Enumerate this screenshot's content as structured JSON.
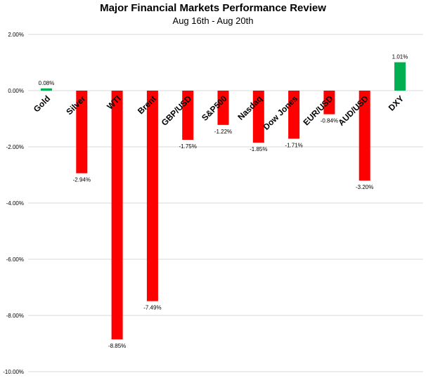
{
  "chart_data": {
    "type": "bar",
    "title": "Major Financial Markets Performance Review",
    "subtitle": "Aug 16th - Aug 20th",
    "xlabel": "",
    "ylabel": "",
    "ylim": [
      -10,
      2
    ],
    "yticks": [
      2,
      0,
      -2,
      -4,
      -6,
      -8,
      -10
    ],
    "ytick_labels": [
      "2.00%",
      "0.00%",
      "-2.00%",
      "-4.00%",
      "-6.00%",
      "-8.00%",
      "-10.00%"
    ],
    "grid": true,
    "categories": [
      "Gold",
      "Silver",
      "WTI",
      "Brent",
      "GBP/USD",
      "S&P500",
      "Nasdaq",
      "Dow Jones",
      "EUR/USD",
      "AUD/USD",
      "DXY"
    ],
    "values": [
      0.08,
      -2.94,
      -8.85,
      -7.49,
      -1.75,
      -1.22,
      -1.85,
      -1.71,
      -0.84,
      -3.2,
      1.01
    ],
    "data_labels": [
      "0.08%",
      "-2.94%",
      "-8.85%",
      "-7.49%",
      "-1.75%",
      "-1.22%",
      "-1.85%",
      "-1.71%",
      "-0.84%",
      "-3.20%",
      "1.01%"
    ],
    "colors": {
      "positive": "#00B050",
      "negative": "#FF0000",
      "grid": "#D9D9D9"
    }
  }
}
